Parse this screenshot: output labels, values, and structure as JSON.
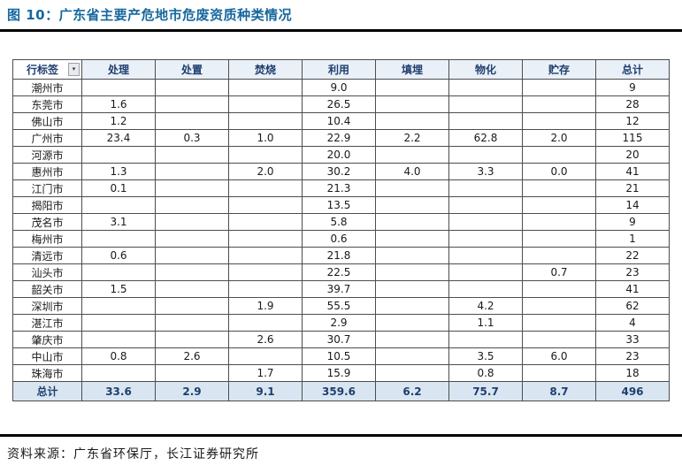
{
  "title": "图 10：广东省主要产危地市危废资质种类情况",
  "source": "资料来源：广东省环保厅，长江证券研究所",
  "icons": {
    "filter_dropdown": "chevron-down-icon"
  },
  "colors": {
    "title_color": "#17689e",
    "header_text": "#1f3f6e",
    "header_bg": "#eaf0f8",
    "total_bg": "#d9e6f2",
    "border_color": "#4d4d4d"
  },
  "table": {
    "row_label_header": "行标签",
    "columns": [
      "处理",
      "处置",
      "焚烧",
      "利用",
      "填埋",
      "物化",
      "贮存",
      "总计"
    ],
    "rows": [
      {
        "label": "潮州市",
        "values": [
          "",
          "",
          "",
          "9.0",
          "",
          "",
          "",
          "9"
        ]
      },
      {
        "label": "东莞市",
        "values": [
          "1.6",
          "",
          "",
          "26.5",
          "",
          "",
          "",
          "28"
        ]
      },
      {
        "label": "佛山市",
        "values": [
          "1.2",
          "",
          "",
          "10.4",
          "",
          "",
          "",
          "12"
        ]
      },
      {
        "label": "广州市",
        "values": [
          "23.4",
          "0.3",
          "1.0",
          "22.9",
          "2.2",
          "62.8",
          "2.0",
          "115"
        ]
      },
      {
        "label": "河源市",
        "values": [
          "",
          "",
          "",
          "20.0",
          "",
          "",
          "",
          "20"
        ]
      },
      {
        "label": "惠州市",
        "values": [
          "1.3",
          "",
          "2.0",
          "30.2",
          "4.0",
          "3.3",
          "0.0",
          "41"
        ]
      },
      {
        "label": "江门市",
        "values": [
          "0.1",
          "",
          "",
          "21.3",
          "",
          "",
          "",
          "21"
        ]
      },
      {
        "label": "揭阳市",
        "values": [
          "",
          "",
          "",
          "13.5",
          "",
          "",
          "",
          "14"
        ]
      },
      {
        "label": "茂名市",
        "values": [
          "3.1",
          "",
          "",
          "5.8",
          "",
          "",
          "",
          "9"
        ]
      },
      {
        "label": "梅州市",
        "values": [
          "",
          "",
          "",
          "0.6",
          "",
          "",
          "",
          "1"
        ]
      },
      {
        "label": "清远市",
        "values": [
          "0.6",
          "",
          "",
          "21.8",
          "",
          "",
          "",
          "22"
        ]
      },
      {
        "label": "汕头市",
        "values": [
          "",
          "",
          "",
          "22.5",
          "",
          "",
          "0.7",
          "23"
        ]
      },
      {
        "label": "韶关市",
        "values": [
          "1.5",
          "",
          "",
          "39.7",
          "",
          "",
          "",
          "41"
        ]
      },
      {
        "label": "深圳市",
        "values": [
          "",
          "",
          "1.9",
          "55.5",
          "",
          "4.2",
          "",
          "62"
        ]
      },
      {
        "label": "湛江市",
        "values": [
          "",
          "",
          "",
          "2.9",
          "",
          "1.1",
          "",
          "4"
        ]
      },
      {
        "label": "肇庆市",
        "values": [
          "",
          "",
          "2.6",
          "30.7",
          "",
          "",
          "",
          "33"
        ]
      },
      {
        "label": "中山市",
        "values": [
          "0.8",
          "2.6",
          "",
          "10.5",
          "",
          "3.5",
          "6.0",
          "23"
        ]
      },
      {
        "label": "珠海市",
        "values": [
          "",
          "",
          "1.7",
          "15.9",
          "",
          "0.8",
          "",
          "18"
        ]
      }
    ],
    "total": {
      "label": "总计",
      "values": [
        "33.6",
        "2.9",
        "9.1",
        "359.6",
        "6.2",
        "75.7",
        "8.7",
        "496"
      ]
    }
  }
}
